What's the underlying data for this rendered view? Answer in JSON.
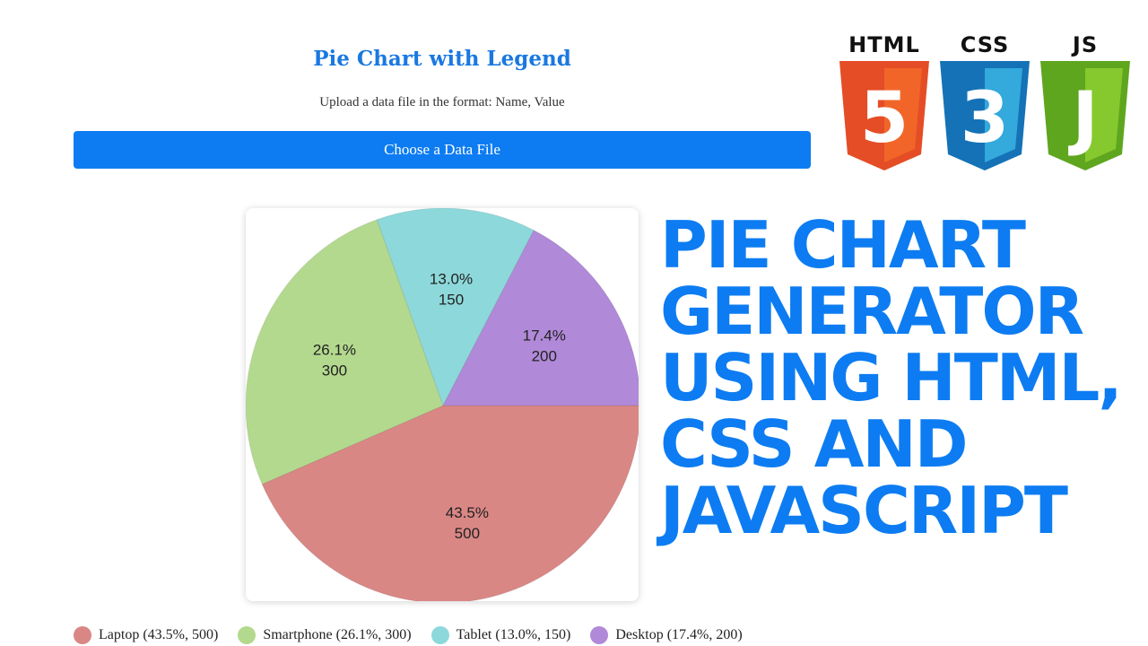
{
  "page": {
    "title": "Pie Chart with Legend",
    "instructions": "Upload a data file in the format: Name, Value",
    "file_button_label": "Choose a Data File"
  },
  "headline": {
    "lines": [
      "PIE CHART",
      "GENERATOR",
      "USING HTML,",
      "CSS AND",
      "JAVASCRIPT"
    ]
  },
  "badges": [
    {
      "label": "HTML",
      "glyph": "5",
      "color": "#e44d26",
      "shade": "#f16529",
      "icon": "html5-icon"
    },
    {
      "label": "CSS",
      "glyph": "3",
      "color": "#1572b6",
      "shade": "#33a9dc",
      "icon": "css3-icon"
    },
    {
      "label": "JS",
      "glyph": "J",
      "color": "#5fa61f",
      "shade": "#86c92e",
      "icon": "js-icon"
    }
  ],
  "chart_data": {
    "type": "pie",
    "slices": [
      {
        "name": "Laptop",
        "value": 500,
        "percent": "43.5%",
        "color": "#d98785"
      },
      {
        "name": "Smartphone",
        "value": 300,
        "percent": "26.1%",
        "color": "#b3d98e"
      },
      {
        "name": "Tablet",
        "value": 150,
        "percent": "13.0%",
        "color": "#8dd8da"
      },
      {
        "name": "Desktop",
        "value": 200,
        "percent": "17.4%",
        "color": "#b089d8"
      }
    ],
    "legend": [
      "Laptop (43.5%, 500)",
      "Smartphone (26.1%, 300)",
      "Tablet (13.0%, 150)",
      "Desktop (17.4%, 200)"
    ],
    "legend_position": "bottom"
  }
}
